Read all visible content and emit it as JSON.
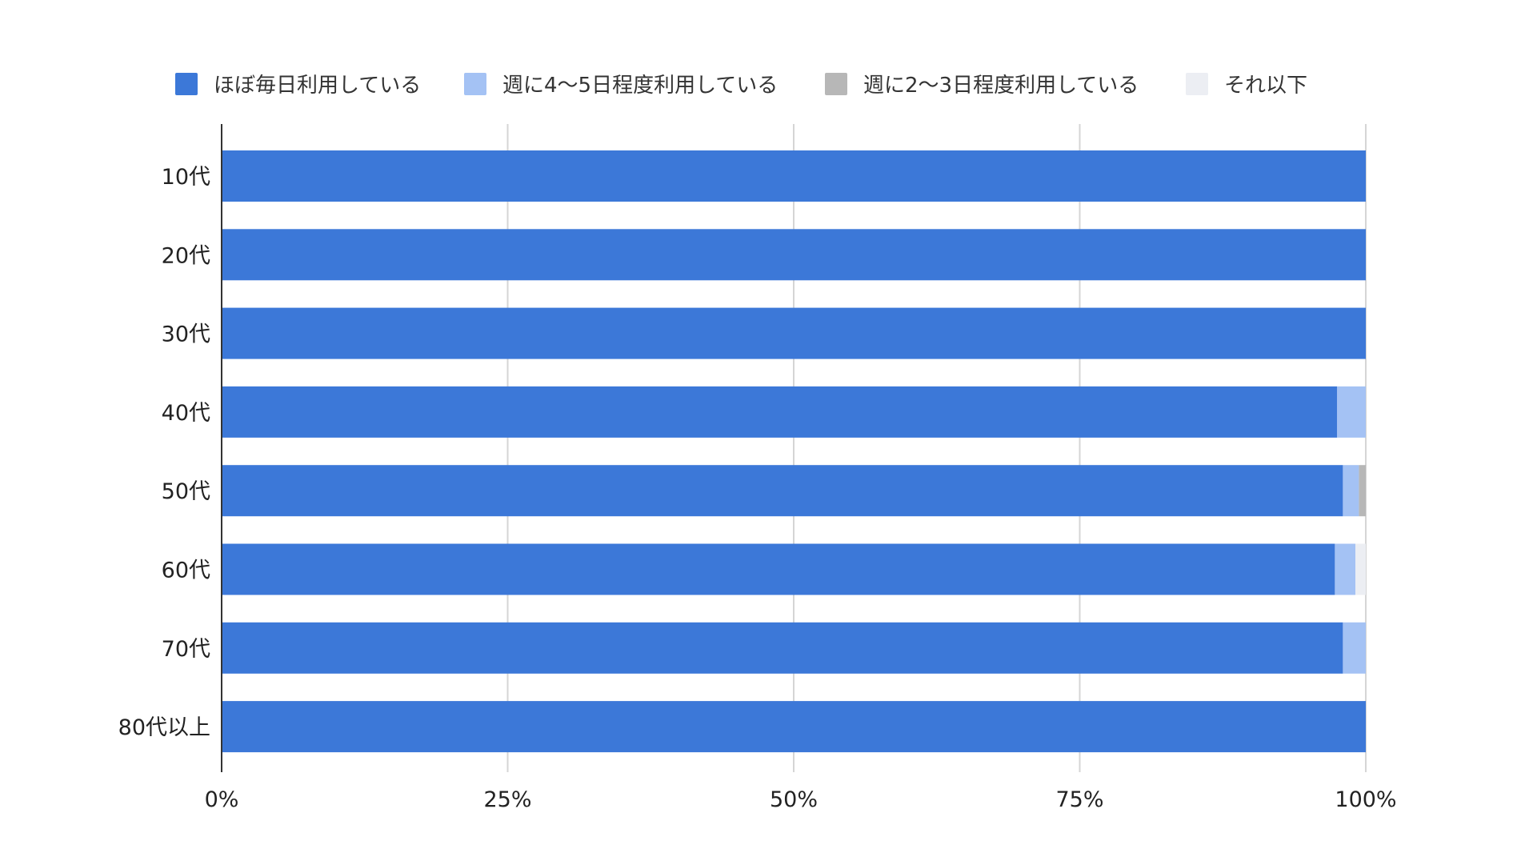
{
  "chart_data": {
    "type": "bar",
    "orientation": "horizontal",
    "stacked": true,
    "normalized": true,
    "title": "",
    "xlabel": "",
    "ylabel": "",
    "xlim": [
      0,
      100
    ],
    "x_ticks": [
      "0%",
      "25%",
      "50%",
      "75%",
      "100%"
    ],
    "grid": true,
    "legend_position": "top",
    "categories": [
      "10代",
      "20代",
      "30代",
      "40代",
      "50代",
      "60代",
      "70代",
      "80代以上"
    ],
    "series": [
      {
        "name": "ほぼ毎日利用している",
        "color": "#3c78d8",
        "values": [
          100,
          100,
          100,
          97.5,
          98,
          97.3,
          98,
          100
        ]
      },
      {
        "name": "週に4〜5日程度利用している",
        "color": "#a4c2f4",
        "values": [
          0,
          0,
          0,
          2.5,
          1.4,
          1.8,
          2,
          0
        ]
      },
      {
        "name": "週に2〜3日程度利用している",
        "color": "#b7b7b7",
        "values": [
          0,
          0,
          0,
          0,
          0.6,
          0,
          0,
          0
        ]
      },
      {
        "name": "それ以下",
        "color": "#eceef3",
        "values": [
          0,
          0,
          0,
          0,
          0,
          0.9,
          0,
          0
        ]
      }
    ]
  }
}
